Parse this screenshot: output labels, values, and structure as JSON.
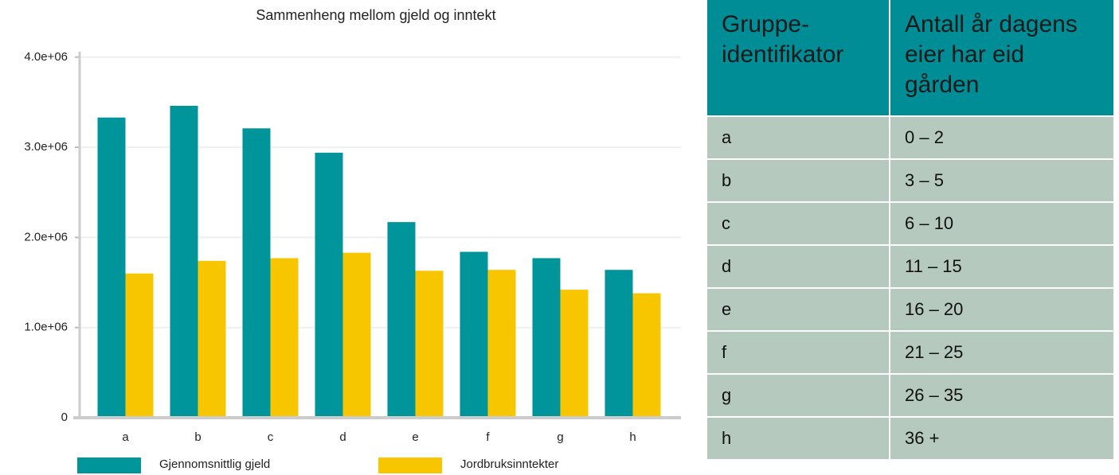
{
  "chart_data": {
    "type": "bar",
    "title": "Sammenheng mellom gjeld og inntekt",
    "categories": [
      "a",
      "b",
      "c",
      "d",
      "e",
      "f",
      "g",
      "h"
    ],
    "series": [
      {
        "name": "Gjennomsnittlig gjeld",
        "color": "#00959a",
        "values": [
          3330000,
          3460000,
          3210000,
          2940000,
          2170000,
          1840000,
          1770000,
          1640000
        ]
      },
      {
        "name": "Jordbruksinntekter",
        "color": "#f7c600",
        "values": [
          1600000,
          1740000,
          1770000,
          1830000,
          1630000,
          1640000,
          1420000,
          1380000
        ]
      }
    ],
    "ylim": [
      0,
      4060000
    ],
    "yticks": [
      0,
      {
        "value": 1000000,
        "label": "1.0e+06"
      },
      {
        "value": 2000000,
        "label": "2.0e+06"
      },
      {
        "value": 3000000,
        "label": "3.0e+06"
      },
      {
        "value": 4000000,
        "label": "4.0e+06"
      }
    ],
    "grid": true,
    "legend": "bottom"
  },
  "table": {
    "header": [
      "Gruppe-identifikator",
      "Antall år dagens eier har eid gården"
    ],
    "rows": [
      [
        "a",
        "0 – 2"
      ],
      [
        "b",
        "3 – 5"
      ],
      [
        "c",
        "6 – 10"
      ],
      [
        "d",
        "11 – 15"
      ],
      [
        "e",
        "16 – 20"
      ],
      [
        "f",
        "21 – 25"
      ],
      [
        "g",
        "26 – 35"
      ],
      [
        "h",
        "36 +"
      ]
    ]
  }
}
